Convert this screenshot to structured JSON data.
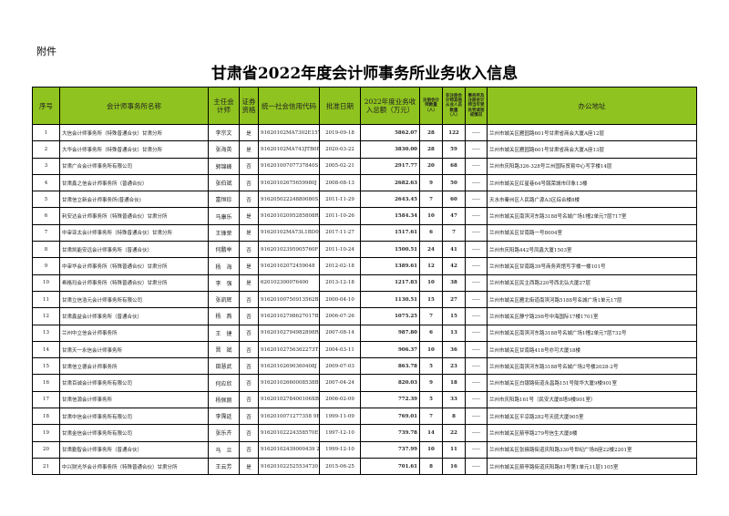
{
  "attachment": "附件",
  "title": "甘肃省2022年度会计师事务所业务收入信息",
  "headers": [
    "序号",
    "会计师事务所名称",
    "主任会计师",
    "证券资格",
    "统一社会信用代码",
    "批准日期",
    "2022年度业务收入总额（万元）",
    "注册会计师数量（人）",
    "非注册会计师其他从业人员数量（人）",
    "事务所及注册会计师当年受处罚或惩戒情况",
    "办公地址"
  ],
  "header_color": "#8fc31f",
  "rows": [
    [
      "1",
      "大信会计师事务所（特殊普通合伙）甘肃分所",
      "李宗文",
      "是",
      "91620102MA7302E157",
      "2019-09-18",
      "5862.07",
      "28",
      "122",
      "-----",
      "兰州市城关区雁园路601号甘肃省商会大厦A座12层"
    ],
    [
      "2",
      "大华会计师事务所（特殊普通合伙）甘肃分所",
      "张海英",
      "是",
      "91620102MA743JTB0F",
      "2020-03-22",
      "3830.00",
      "28",
      "59",
      "-----",
      "兰州市城关区雁园路601号甘肃省商会大厦A座13层"
    ],
    [
      "3",
      "甘肃广合会计师事务所有限公司",
      "郭锦峰",
      "否",
      "91620100707737840S",
      "2005-02-21",
      "2917.77",
      "20",
      "68",
      "-----",
      "兰州市庆阳路326-328号兰州国际贸易中心写字楼14层"
    ],
    [
      "4",
      "甘肃鑫之信会计师事务所（普通合伙）",
      "张伯斌",
      "否",
      "91620102675659980J",
      "2008-08-13",
      "2682.63",
      "9",
      "50",
      "-----",
      "兰州市城关区红星巷64号兢荣城市印象13楼"
    ],
    [
      "5",
      "甘肃信立新会计师事务所(普通合伙)",
      "富恒珍",
      "否",
      "91620502224880080S",
      "2011-11-29",
      "2643.45",
      "7",
      "60",
      "-----",
      "天水市秦州区人民路广源A3区综合楼8楼"
    ],
    [
      "6",
      "利安达会计师事务所（特殊普通合伙）甘肃分所",
      "马康乐",
      "是",
      "91620102095285808R",
      "2011-10-26",
      "1584.34",
      "10",
      "47",
      "-----",
      "兰州市城关区南滨河东路3188号名城广场1幢2单元7层717室"
    ],
    [
      "7",
      "中审亚太会计师事务所（特殊普通合伙）甘肃分所",
      "王锋荣",
      "是",
      "91620102MA73L1BD0C",
      "2017-11-27",
      "1517.61",
      "6",
      "7",
      "-----",
      "兰州市城关区甘南路一号8004室"
    ],
    [
      "8",
      "甘肃凯能安远会计师事务所（普通合伙）",
      "何鹏举",
      "否",
      "91620102395905760F",
      "2011-10-24",
      "1500.51",
      "24",
      "41",
      "-----",
      "兰州市庆阳路442号凤鑫大厦1503室"
    ],
    [
      "9",
      "中审华会计师事务所（特殊普通合伙）甘肃分所",
      "杨　海",
      "是",
      "91620102072459048",
      "2012-02-18",
      "1389.61",
      "12",
      "42",
      "-----",
      "兰州市城关区甘南路39号商务宾馆写字楼一楼101号"
    ],
    [
      "10",
      "希格玛会计师事务所（特殊普通合伙）甘肃分所",
      "李　强",
      "是",
      "620102300076400",
      "2013-12-18",
      "1217.83",
      "10",
      "38",
      "-----",
      "兰州市城关区民主西路220号西北弘大厦27层"
    ],
    [
      "11",
      "甘肃立信浩元会计师事务所有限公司",
      "张凯辉",
      "否",
      "91620100750913562B",
      "2000-04-10",
      "1130.51",
      "15",
      "27",
      "-----",
      "兰州市城关区雁北街道南滨河路5188号名城广场1单元17层"
    ],
    [
      "12",
      "甘肃鑫益会计师事务所（普通合伙）",
      "杨　燕",
      "否",
      "91620102798627017B",
      "2006-07-26",
      "1075.25",
      "7",
      "15",
      "-----",
      "兰州市城关区静宁路298号中海国际17楼1701室"
    ],
    [
      "13",
      "兰州中立信会计师事务所",
      "王　捷",
      "否",
      "91620102794982898R",
      "2007-08-14",
      "987.80",
      "6",
      "13",
      "-----",
      "兰州市城关区南滨河东路3188号名城广场1幢2单元7层732号"
    ],
    [
      "14",
      "甘肃天一永信会计师事务所",
      "晋　斌",
      "否",
      "91620102756362273T",
      "2004-03-11",
      "906.37",
      "10",
      "36",
      "-----",
      "兰州市城关区甘南路418号亦可大厦18楼"
    ],
    [
      "15",
      "甘肃信立德会计师事务所",
      "田慧武",
      "否",
      "91620102690360408J",
      "2009-07-03",
      "863.78",
      "5",
      "23",
      "-----",
      "兰州市城关区南滨河东路3188号名城广场2号楼2028-2号"
    ],
    [
      "16",
      "甘肃百诚会计师事务所有限公司",
      "何应欣",
      "否",
      "91620102660008538B",
      "2007-04-24",
      "820.03",
      "9",
      "18",
      "-----",
      "兰州市城关区白银路街道永昌路151号陇华大厦9楼901室"
    ],
    [
      "17",
      "甘肃信源会计师事务所",
      "杨佩丽",
      "否",
      "9162010278400106XB",
      "2006-02-09",
      "772.39",
      "5",
      "33",
      "-----",
      "兰州市庆阳路161号（民安大厦B塔9楼901室）"
    ],
    [
      "18",
      "甘肃中信会计师事务所有限公司",
      "李霈廷",
      "否",
      "9162010071277358 9E",
      "1999-11-09",
      "769.01",
      "7",
      "8",
      "-----",
      "兰州市城关区平凉路282号天庭大厦905室"
    ],
    [
      "19",
      "甘肃金信会计师事务所有限公司",
      "张乐卉",
      "否",
      "91620102224358570E",
      "1997-12-10",
      "739.78",
      "14",
      "22",
      "-----",
      "兰州市城关区箭亭路279号信生大厦8楼"
    ],
    [
      "20",
      "甘肃勤智会计师事务所（普通合伙）",
      "马　兰",
      "否",
      "91620102439000439 2",
      "1999-12-10",
      "737.99",
      "10",
      "11",
      "-----",
      "兰州市城关区张掖路街道庆阳路330号世纪广场B座22楼2201室"
    ],
    [
      "21",
      "中兴财光华会计师事务所（特殊普通合伙）甘肃分所",
      "王云芳",
      "是",
      "916201022525534730",
      "2015-06-25",
      "701.61",
      "8",
      "16",
      "-----",
      "兰州市城关区箭亭路街道庆阳路81号第1单元11层1105室"
    ]
  ]
}
